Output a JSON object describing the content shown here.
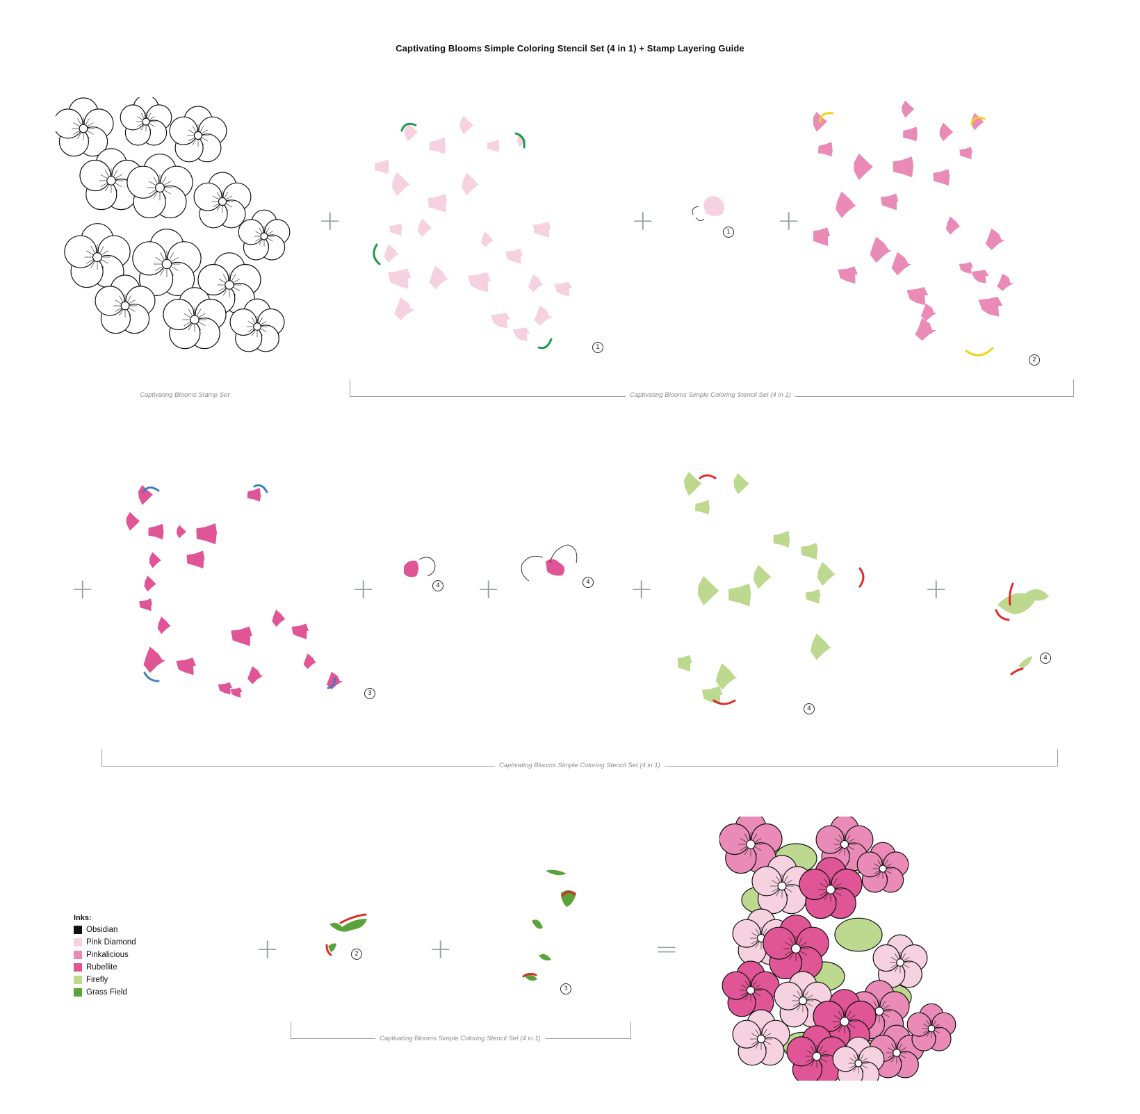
{
  "title": "Captivating Blooms Simple Coloring Stencil Set (4 in 1) + Stamp Layering Guide",
  "captions": {
    "stamp_set": "Captivating Blooms Stamp Set",
    "stencil_set": "Captivating Blooms Simple Coloring Stencil Set (4 in 1)"
  },
  "operators": {
    "plus": "+",
    "equals": "="
  },
  "step_numbers": [
    "1",
    "2",
    "3",
    "4"
  ],
  "inks": {
    "title": "Inks:",
    "items": [
      {
        "name": "Obsidian",
        "color": "#111111"
      },
      {
        "name": "Pink Diamond",
        "color": "#f6d2e1"
      },
      {
        "name": "Pinkalicious",
        "color": "#ea8bb7"
      },
      {
        "name": "Rubellite",
        "color": "#e05595"
      },
      {
        "name": "Firefly",
        "color": "#bcd98f"
      },
      {
        "name": "Grass Field",
        "color": "#5aa33a"
      }
    ]
  },
  "colors": {
    "pink_diamond": "#f6d2e1",
    "pinkalicious": "#ea8bb7",
    "rubellite": "#e05595",
    "firefly": "#bcd98f",
    "grass_field": "#5aa33a",
    "mark_green": "#1e9a4a",
    "mark_blue": "#3a7fc4",
    "mark_red": "#e02b2b",
    "mark_yellow": "#f3d21a"
  }
}
